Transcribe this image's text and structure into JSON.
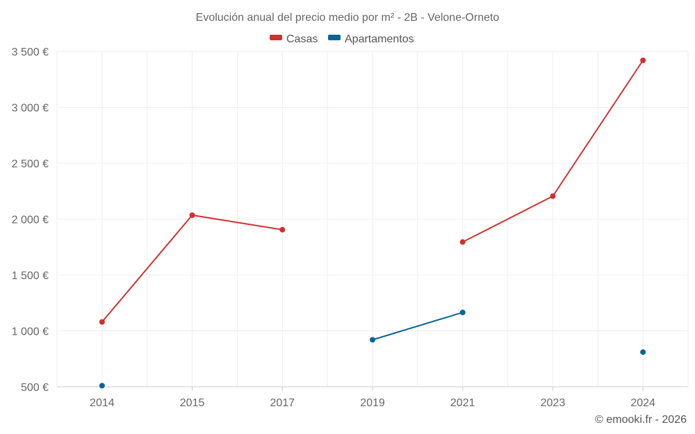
{
  "chart_data": {
    "type": "line",
    "title": "Evolución anual del precio medio por m² - 2B - Velone-Orneto",
    "categories": [
      "2014",
      "2015",
      "2017",
      "2019",
      "2021",
      "2023",
      "2024"
    ],
    "ylim": [
      500,
      3500
    ],
    "yticks": [
      500,
      1000,
      1500,
      2000,
      2500,
      3000,
      3500
    ],
    "ytick_labels": [
      "500 €",
      "1 000 €",
      "1 500 €",
      "2 000 €",
      "2 500 €",
      "3 000 €",
      "3 500 €"
    ],
    "grid": true,
    "legend_position": "top-center",
    "series": [
      {
        "name": "Casas",
        "color": "#d32f2f",
        "values": [
          1080,
          2035,
          1905,
          null,
          1795,
          2205,
          3420
        ]
      },
      {
        "name": "Apartamentos",
        "color": "#0a6496",
        "values": [
          510,
          null,
          null,
          920,
          1165,
          null,
          810
        ]
      }
    ]
  },
  "credit": "© emooki.fr - 2026"
}
